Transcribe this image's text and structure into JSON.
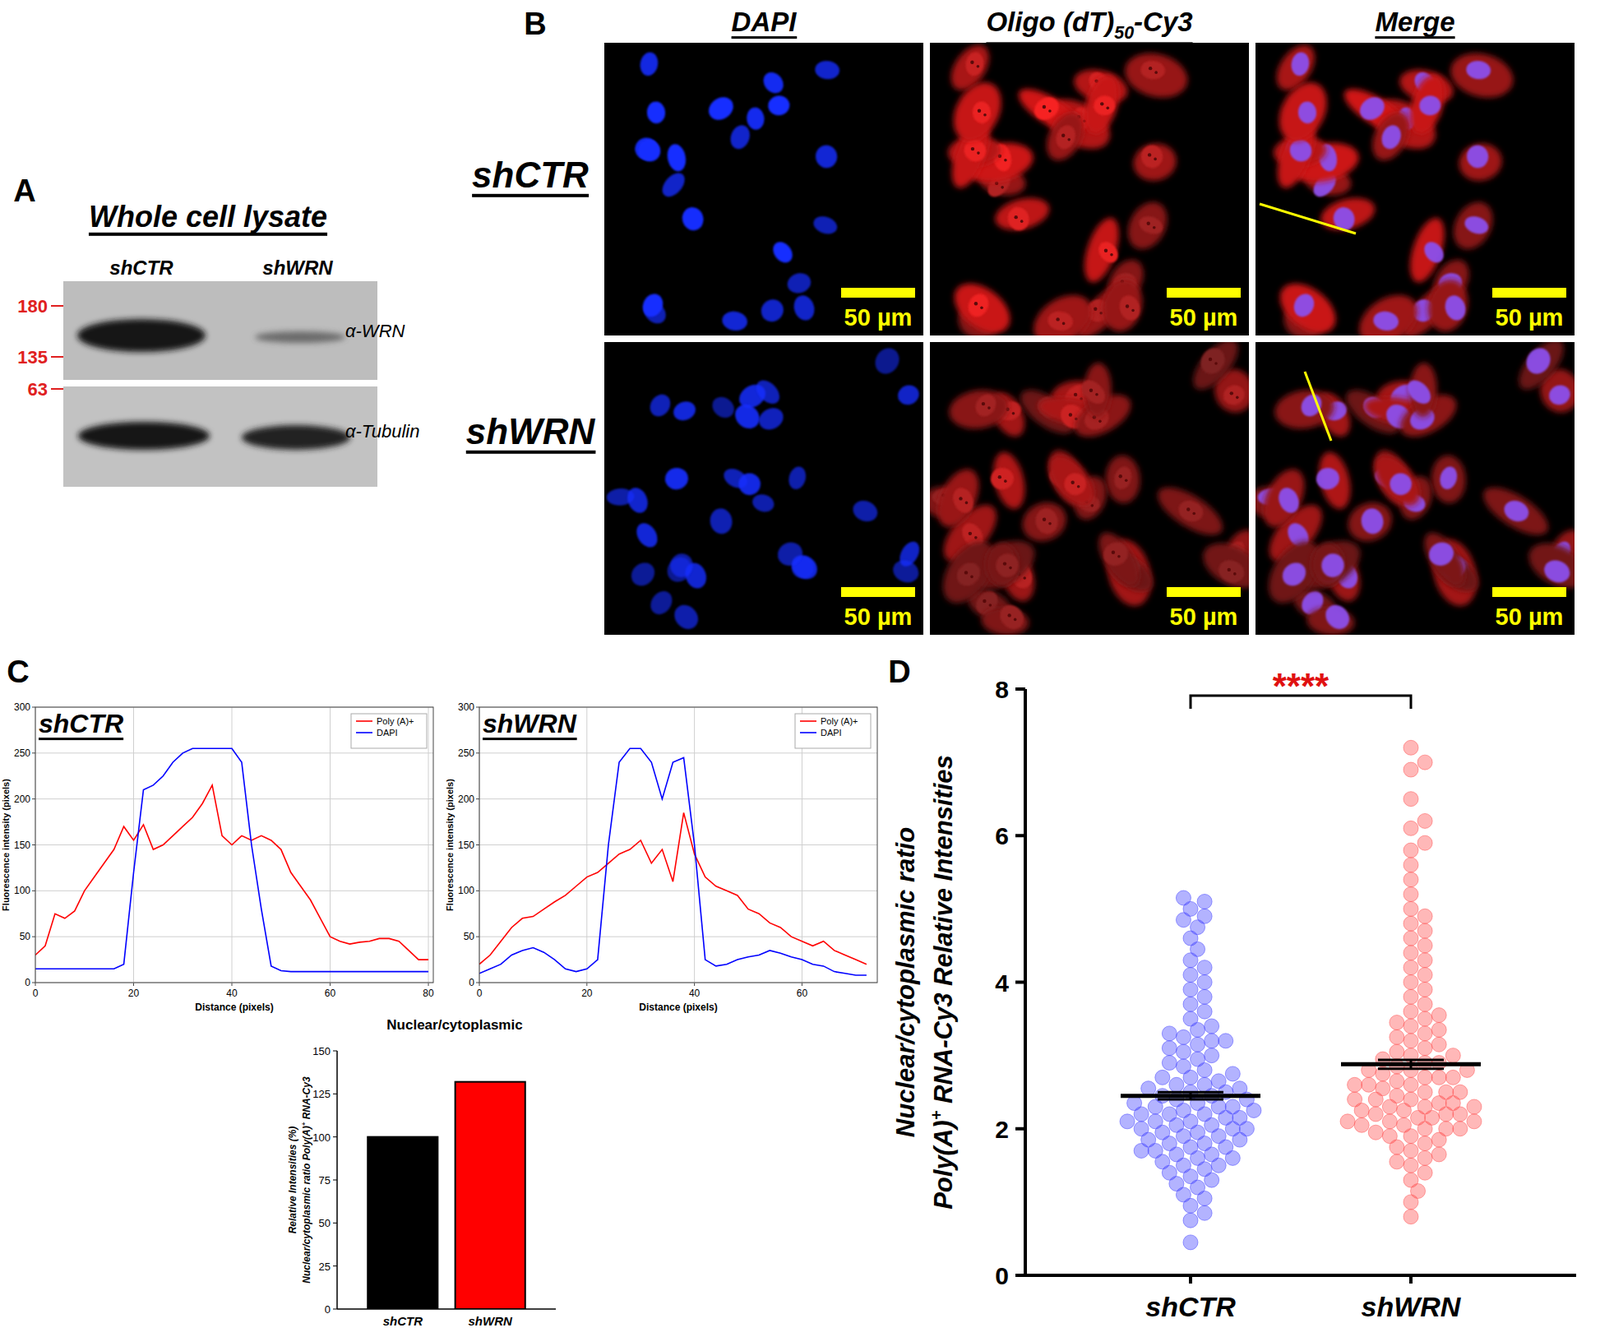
{
  "panel_labels": [
    "A",
    "B",
    "C",
    "D"
  ],
  "blot": {
    "title": "Whole cell lysate",
    "lanes": [
      "shCTR",
      "shWRN"
    ],
    "markers": [
      180,
      135,
      63
    ],
    "antibodies": [
      "α-WRN",
      "α-Tubulin"
    ]
  },
  "microscopy": {
    "columns": [
      "DAPI",
      "Oligo (dT)50-Cy3",
      "Merge"
    ],
    "rows": [
      "shCTR",
      "shWRN"
    ],
    "scale_bar": "50 µm"
  },
  "chart_data": [
    {
      "type": "line",
      "title": "shCTR",
      "x_label": "Distance (pixels)",
      "y_label": "Fluorescence intensity (pixels)",
      "x": [
        0,
        2,
        4,
        6,
        8,
        10,
        12,
        14,
        16,
        18,
        20,
        22,
        24,
        26,
        28,
        30,
        32,
        34,
        36,
        38,
        40,
        42,
        44,
        46,
        48,
        50,
        52,
        54,
        56,
        58,
        60,
        62,
        64,
        66,
        68,
        70,
        72,
        74,
        76,
        78,
        80
      ],
      "series": [
        {
          "name": "Poly (A)+",
          "color": "#ff0000",
          "values": [
            30,
            40,
            75,
            70,
            78,
            100,
            115,
            130,
            145,
            170,
            155,
            172,
            145,
            150,
            160,
            170,
            180,
            195,
            215,
            160,
            150,
            160,
            155,
            160,
            155,
            145,
            120,
            105,
            90,
            70,
            50,
            45,
            42,
            44,
            45,
            48,
            48,
            45,
            35,
            25,
            25
          ]
        },
        {
          "name": "DAPI",
          "color": "#0000ff",
          "values": [
            15,
            15,
            15,
            15,
            15,
            15,
            15,
            15,
            15,
            20,
            120,
            210,
            215,
            225,
            240,
            250,
            255,
            255,
            255,
            255,
            255,
            240,
            150,
            80,
            18,
            13,
            12,
            12,
            12,
            12,
            12,
            12,
            12,
            12,
            12,
            12,
            12,
            12,
            12,
            12,
            12
          ]
        }
      ],
      "xlim": [
        0,
        81
      ],
      "xticks": [
        0,
        20,
        40,
        60,
        80
      ],
      "ylim": [
        0,
        300
      ],
      "yticks": [
        0,
        50,
        100,
        150,
        200,
        250,
        300
      ],
      "grid": true,
      "legend": "upper right"
    },
    {
      "type": "line",
      "title": "shWRN",
      "x_label": "Distance (pixels)",
      "y_label": "Fluorescence intensity (pixels)",
      "x": [
        0,
        2,
        4,
        6,
        8,
        10,
        12,
        14,
        16,
        18,
        20,
        22,
        24,
        26,
        28,
        30,
        32,
        34,
        36,
        38,
        40,
        42,
        44,
        46,
        48,
        50,
        52,
        54,
        56,
        58,
        60,
        62,
        64,
        66,
        68,
        70,
        72
      ],
      "series": [
        {
          "name": "Poly (A)+",
          "color": "#ff0000",
          "values": [
            20,
            30,
            45,
            60,
            70,
            72,
            80,
            88,
            95,
            105,
            115,
            120,
            130,
            140,
            145,
            155,
            130,
            145,
            110,
            185,
            140,
            115,
            105,
            100,
            95,
            80,
            75,
            65,
            60,
            50,
            45,
            40,
            45,
            35,
            30,
            25,
            20
          ]
        },
        {
          "name": "DAPI",
          "color": "#0000ff",
          "values": [
            10,
            15,
            20,
            30,
            35,
            38,
            33,
            25,
            15,
            12,
            15,
            25,
            150,
            240,
            255,
            255,
            240,
            200,
            240,
            245,
            150,
            25,
            18,
            20,
            25,
            28,
            30,
            35,
            32,
            28,
            25,
            20,
            18,
            12,
            10,
            8,
            8
          ]
        }
      ],
      "xlim": [
        0,
        74
      ],
      "xticks": [
        0,
        20,
        40,
        60
      ],
      "ylim": [
        0,
        300
      ],
      "yticks": [
        0,
        50,
        100,
        150,
        200,
        250,
        300
      ],
      "grid": true,
      "legend": "upper right"
    },
    {
      "type": "bar",
      "title": "Nuclear/cytoplasmic",
      "y_label": [
        "Relative Intensities (%)",
        "Nuclear/cytoplasmic ratio Poly(A)+ RNA-Cy3"
      ],
      "categories": [
        "shCTR",
        "shWRN"
      ],
      "values": [
        100,
        132
      ],
      "colors": [
        "#000000",
        "#ff0000"
      ],
      "ylim": [
        0,
        150
      ],
      "yticks": [
        0,
        25,
        50,
        75,
        100,
        125,
        150
      ]
    },
    {
      "type": "strip",
      "y_label": [
        "Nuclear/cytoplasmic ratio",
        "Poly(A)+ RNA-Cy3 Relative Intensities"
      ],
      "categories": [
        "shCTR",
        "shWRN"
      ],
      "colors": [
        "#4040ff",
        "#ff4d4d"
      ],
      "values": [
        [
          0.45,
          0.75,
          0.85,
          0.95,
          1.05,
          1.1,
          1.2,
          1.25,
          1.3,
          1.35,
          1.4,
          1.45,
          1.5,
          1.5,
          1.55,
          1.6,
          1.6,
          1.65,
          1.65,
          1.7,
          1.7,
          1.75,
          1.75,
          1.8,
          1.8,
          1.85,
          1.85,
          1.9,
          1.9,
          1.95,
          1.95,
          2.0,
          2.0,
          2.0,
          2.05,
          2.05,
          2.1,
          2.1,
          2.1,
          2.15,
          2.15,
          2.2,
          2.2,
          2.2,
          2.25,
          2.25,
          2.3,
          2.3,
          2.3,
          2.35,
          2.35,
          2.4,
          2.4,
          2.45,
          2.45,
          2.5,
          2.5,
          2.55,
          2.55,
          2.6,
          2.6,
          2.65,
          2.7,
          2.7,
          2.75,
          2.8,
          2.85,
          2.9,
          2.95,
          3.0,
          3.05,
          3.1,
          3.15,
          3.2,
          3.2,
          3.25,
          3.3,
          3.35,
          3.4,
          3.5,
          3.6,
          3.7,
          3.8,
          3.9,
          4.0,
          4.1,
          4.2,
          4.3,
          4.45,
          4.6,
          4.75,
          4.85,
          4.9,
          5.0,
          5.1,
          5.15
        ],
        [
          0.8,
          1.0,
          1.15,
          1.3,
          1.4,
          1.5,
          1.55,
          1.6,
          1.65,
          1.7,
          1.75,
          1.8,
          1.85,
          1.9,
          1.9,
          1.95,
          2.0,
          2.0,
          2.0,
          2.05,
          2.05,
          2.1,
          2.1,
          2.1,
          2.15,
          2.15,
          2.2,
          2.2,
          2.2,
          2.25,
          2.25,
          2.3,
          2.3,
          2.3,
          2.35,
          2.35,
          2.4,
          2.4,
          2.4,
          2.45,
          2.5,
          2.5,
          2.5,
          2.55,
          2.6,
          2.6,
          2.6,
          2.65,
          2.7,
          2.7,
          2.7,
          2.75,
          2.8,
          2.8,
          2.8,
          2.85,
          2.9,
          2.9,
          2.95,
          3.0,
          3.0,
          3.05,
          3.1,
          3.15,
          3.2,
          3.25,
          3.3,
          3.35,
          3.4,
          3.45,
          3.5,
          3.55,
          3.6,
          3.7,
          3.8,
          3.9,
          4.0,
          4.1,
          4.2,
          4.3,
          4.4,
          4.5,
          4.6,
          4.7,
          4.8,
          4.9,
          5.0,
          5.2,
          5.4,
          5.6,
          5.8,
          5.9,
          6.1,
          6.2,
          6.5,
          6.9,
          7.0,
          7.2
        ]
      ],
      "means": [
        2.45,
        2.88
      ],
      "errors": [
        0.05,
        0.06
      ],
      "annotation": "****",
      "ylim": [
        0,
        8
      ],
      "yticks": [
        0,
        2,
        4,
        6,
        8
      ]
    }
  ]
}
